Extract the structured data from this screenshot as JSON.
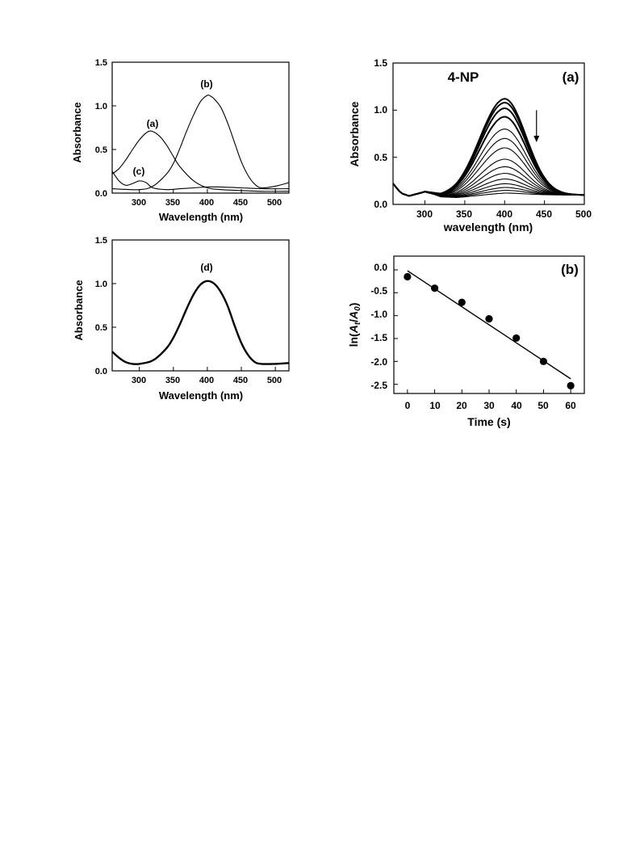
{
  "chart_data": [
    {
      "id": "uv_top_left",
      "type": "line",
      "xlabel": "Wavelength (nm)",
      "ylabel": "Absorbance",
      "xlim": [
        260,
        520
      ],
      "ylim": [
        0.0,
        1.5
      ],
      "xticks": [
        "300",
        "350",
        "400",
        "450",
        "500"
      ],
      "yticks": [
        "0.0",
        "0.5",
        "1.0",
        "1.5"
      ],
      "annotations": [
        "(a)",
        "(b)",
        "(c)"
      ],
      "series": [
        {
          "name": "(a)",
          "x": [
            260,
            270,
            280,
            290,
            300,
            310,
            318,
            330,
            340,
            350,
            360,
            380,
            400,
            420,
            450,
            480,
            520
          ],
          "y": [
            0.22,
            0.28,
            0.38,
            0.5,
            0.61,
            0.69,
            0.71,
            0.65,
            0.55,
            0.42,
            0.3,
            0.14,
            0.06,
            0.04,
            0.03,
            0.02,
            0.02
          ]
        },
        {
          "name": "(b)",
          "x": [
            260,
            300,
            320,
            340,
            350,
            360,
            370,
            380,
            390,
            400,
            405,
            410,
            420,
            430,
            440,
            450,
            460,
            470,
            480,
            500,
            520
          ],
          "y": [
            0.05,
            0.04,
            0.08,
            0.22,
            0.34,
            0.52,
            0.72,
            0.9,
            1.05,
            1.12,
            1.11,
            1.08,
            0.98,
            0.8,
            0.58,
            0.36,
            0.2,
            0.1,
            0.06,
            0.08,
            0.12
          ]
        },
        {
          "name": "(c)",
          "x": [
            260,
            270,
            280,
            290,
            300,
            310,
            320,
            340,
            360,
            380,
            400,
            420,
            450,
            480,
            520
          ],
          "y": [
            0.25,
            0.14,
            0.09,
            0.11,
            0.14,
            0.12,
            0.06,
            0.04,
            0.05,
            0.06,
            0.07,
            0.07,
            0.06,
            0.05,
            0.05
          ]
        }
      ]
    },
    {
      "id": "uv_bottom_left",
      "type": "line",
      "xlabel": "Wavelength (nm)",
      "ylabel": "Absorbance",
      "xlim": [
        260,
        520
      ],
      "ylim": [
        0.0,
        1.5
      ],
      "xticks": [
        "300",
        "350",
        "400",
        "450",
        "500"
      ],
      "yticks": [
        "0.0",
        "0.5",
        "1.0",
        "1.5"
      ],
      "annotations": [
        "(d)"
      ],
      "series": [
        {
          "name": "(d)",
          "x": [
            260,
            270,
            280,
            290,
            300,
            320,
            340,
            350,
            360,
            370,
            380,
            390,
            400,
            410,
            420,
            430,
            440,
            450,
            460,
            470,
            480,
            500,
            520
          ],
          "y": [
            0.22,
            0.15,
            0.1,
            0.08,
            0.08,
            0.12,
            0.26,
            0.38,
            0.54,
            0.72,
            0.88,
            0.99,
            1.03,
            1.0,
            0.9,
            0.74,
            0.52,
            0.32,
            0.18,
            0.1,
            0.08,
            0.08,
            0.09
          ]
        }
      ]
    },
    {
      "id": "uv_4np_kinetics",
      "type": "line",
      "panel_label": "(a)",
      "title": "4-NP",
      "xlabel": "wavelength (nm)",
      "ylabel": "Absorbance",
      "xlim": [
        260,
        500
      ],
      "ylim": [
        0.0,
        1.5
      ],
      "xticks": [
        "300",
        "350",
        "400",
        "450",
        "500"
      ],
      "yticks": [
        "0.0",
        "0.5",
        "1.0",
        "1.5"
      ],
      "peak_wavelength": 400,
      "baseline": [
        [
          260,
          0.22
        ],
        [
          270,
          0.12
        ],
        [
          280,
          0.09
        ],
        [
          290,
          0.11
        ],
        [
          300,
          0.13
        ],
        [
          310,
          0.11
        ],
        [
          320,
          0.08
        ],
        [
          340,
          0.07
        ],
        [
          360,
          0.08
        ],
        [
          380,
          0.09
        ],
        [
          400,
          0.1
        ],
        [
          420,
          0.1
        ],
        [
          450,
          0.1
        ],
        [
          480,
          0.1
        ],
        [
          500,
          0.1
        ]
      ],
      "peak_heights": [
        1.12,
        1.08,
        1.02,
        0.93,
        0.8,
        0.7,
        0.6,
        0.48,
        0.4,
        0.33,
        0.27,
        0.22,
        0.18,
        0.15,
        0.12
      ],
      "arrow_at_wavelength": 440,
      "arrow_from": 1.0,
      "arrow_to": 0.66
    },
    {
      "id": "ln_kinetics",
      "type": "scatter",
      "panel_label": "(b)",
      "xlabel": "Time (s)",
      "ylabel_parts": [
        "ln(",
        "A",
        "t",
        "/",
        "A",
        "0",
        ")"
      ],
      "xlim": [
        -5,
        65
      ],
      "ylim": [
        -2.7,
        0.3
      ],
      "xticks": [
        "0",
        "10",
        "20",
        "30",
        "40",
        "50",
        "60"
      ],
      "yticks": [
        "0.0",
        "-0.5",
        "-1.0",
        "-1.5",
        "-2.0",
        "-2.5"
      ],
      "x": [
        0,
        10,
        20,
        30,
        40,
        50,
        60
      ],
      "y": [
        -0.15,
        -0.4,
        -0.71,
        -1.07,
        -1.49,
        -2.0,
        -2.53
      ],
      "fit": {
        "x": [
          0,
          60
        ],
        "y": [
          -0.02,
          -2.38
        ]
      }
    }
  ]
}
